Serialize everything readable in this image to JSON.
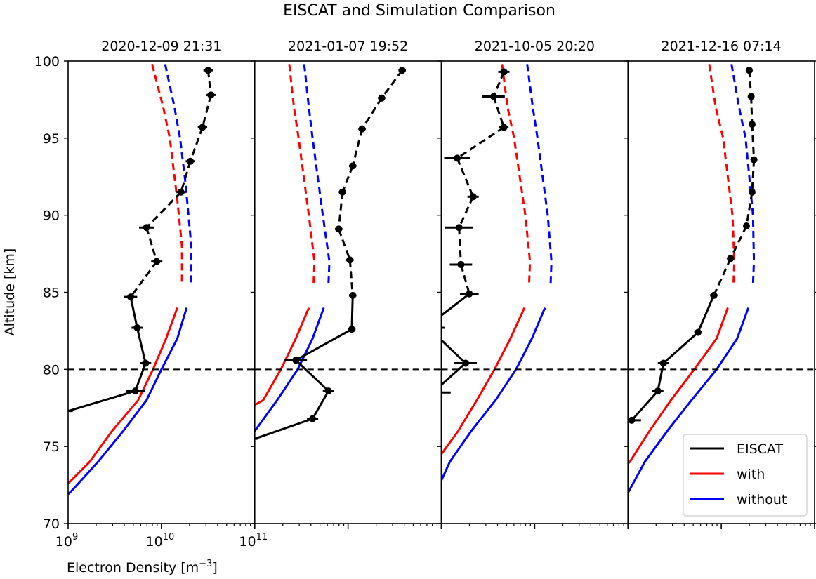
{
  "chart_data": {
    "type": "line",
    "title": "EISCAT and Simulation Comparison",
    "xlabel": "Electron Density [m⁻³]",
    "ylabel": "Altitude [km]",
    "xscale": "log",
    "xlim_log10": [
      9,
      11
    ],
    "ylim": [
      70,
      100
    ],
    "yticks": [
      70,
      75,
      80,
      85,
      90,
      95,
      100
    ],
    "xtick_labels": [
      {
        "exp": "9"
      },
      {
        "exp": "10"
      },
      {
        "exp": "11"
      }
    ],
    "reference_line": {
      "altitude": 80,
      "style": "dashed",
      "color": "#000000"
    },
    "dashed_above_km": 85,
    "legend": {
      "placement": "lower-right",
      "entries": [
        {
          "label": "EISCAT",
          "color": "#000000"
        },
        {
          "label": "with",
          "color": "#ff0000"
        },
        {
          "label": "without",
          "color": "#0000ff"
        }
      ]
    },
    "panels": [
      {
        "title": "2020-12-09 21:31",
        "eiscat": [
          [
            10.5,
            99.4
          ],
          [
            10.53,
            97.8
          ],
          [
            10.44,
            95.7
          ],
          [
            10.31,
            93.5
          ],
          [
            10.21,
            91.5
          ],
          [
            9.84,
            89.2
          ],
          [
            9.95,
            87.0
          ],
          [
            9.67,
            84.7
          ],
          [
            9.74,
            82.7
          ],
          [
            9.83,
            80.4
          ],
          [
            9.72,
            78.6
          ],
          [
            9.0,
            77.3
          ]
        ],
        "eiscat_err": [
          0.05,
          0.05,
          0.05,
          0.05,
          0.05,
          0.08,
          0.06,
          0.07,
          0.06,
          0.06,
          0.1,
          0.05
        ],
        "with": [
          [
            9.9,
            99.8
          ],
          [
            10.02,
            97
          ],
          [
            10.09,
            95
          ],
          [
            10.17,
            91
          ],
          [
            10.22,
            88
          ],
          [
            10.22,
            85.5
          ],
          [
            10.17,
            84
          ],
          [
            10.05,
            82
          ],
          [
            9.91,
            80
          ],
          [
            9.75,
            78
          ],
          [
            9.47,
            76
          ],
          [
            9.23,
            74
          ],
          [
            9.0,
            72.6
          ]
        ],
        "without": [
          [
            10.04,
            99.8
          ],
          [
            10.14,
            97
          ],
          [
            10.2,
            95
          ],
          [
            10.26,
            92
          ],
          [
            10.32,
            88
          ],
          [
            10.32,
            85.5
          ],
          [
            10.27,
            84
          ],
          [
            10.17,
            82
          ],
          [
            10.0,
            80
          ],
          [
            9.84,
            78
          ],
          [
            9.59,
            76
          ],
          [
            9.32,
            74
          ],
          [
            9.05,
            72.2
          ],
          [
            9.0,
            71.9
          ]
        ]
      },
      {
        "title": "2021-01-07 19:52",
        "eiscat": [
          [
            10.58,
            99.4
          ],
          [
            10.36,
            97.6
          ],
          [
            10.15,
            95.6
          ],
          [
            10.05,
            93.2
          ],
          [
            9.94,
            91.5
          ],
          [
            9.9,
            89.1
          ],
          [
            10.02,
            87.1
          ],
          [
            10.05,
            84.8
          ],
          [
            10.04,
            82.6
          ],
          [
            9.44,
            80.6
          ],
          [
            9.79,
            78.6
          ],
          [
            9.62,
            76.8
          ],
          [
            9.0,
            75.5
          ]
        ],
        "eiscat_err": [
          0.04,
          0.04,
          0.04,
          0.04,
          0.04,
          0.04,
          0.04,
          0.04,
          0.04,
          0.12,
          0.06,
          0.06,
          0.03
        ],
        "with": [
          [
            9.37,
            99.8
          ],
          [
            9.42,
            97
          ],
          [
            9.47,
            95
          ],
          [
            9.58,
            90
          ],
          [
            9.64,
            87
          ],
          [
            9.63,
            85.5
          ],
          [
            9.58,
            84
          ],
          [
            9.44,
            82
          ],
          [
            9.28,
            80
          ],
          [
            9.09,
            78
          ],
          [
            9.0,
            77.7
          ]
        ],
        "without": [
          [
            9.53,
            99.8
          ],
          [
            9.58,
            97
          ],
          [
            9.62,
            95
          ],
          [
            9.73,
            90
          ],
          [
            9.8,
            87
          ],
          [
            9.79,
            85.5
          ],
          [
            9.74,
            84
          ],
          [
            9.62,
            82
          ],
          [
            9.46,
            80
          ],
          [
            9.24,
            78
          ],
          [
            9.0,
            76
          ]
        ]
      },
      {
        "title": "2021-10-05 20:20",
        "eiscat": [
          [
            9.67,
            99.3
          ],
          [
            9.56,
            97.7
          ],
          [
            9.67,
            95.7
          ],
          [
            9.17,
            93.7
          ],
          [
            9.34,
            91.2
          ],
          [
            9.19,
            89.2
          ],
          [
            9.21,
            86.8
          ],
          [
            9.3,
            84.9
          ],
          [
            9.0,
            83.5
          ],
          [
            9.0,
            82.7
          ],
          [
            9.0,
            81.9
          ],
          [
            9.26,
            80.4
          ],
          [
            9.0,
            79.0
          ],
          [
            9.0,
            78.5
          ]
        ],
        "eiscat_err": [
          0.06,
          0.12,
          0.05,
          0.14,
          0.06,
          0.15,
          0.12,
          0.1,
          0,
          0.04,
          0,
          0.12,
          0,
          0.1
        ],
        "with": [
          [
            9.65,
            99.8
          ],
          [
            9.71,
            97
          ],
          [
            9.78,
            95
          ],
          [
            9.9,
            90
          ],
          [
            9.95,
            87
          ],
          [
            9.94,
            85.5
          ],
          [
            9.89,
            84
          ],
          [
            9.74,
            82
          ],
          [
            9.57,
            80
          ],
          [
            9.38,
            78
          ],
          [
            9.18,
            76
          ],
          [
            9.0,
            74.5
          ]
        ],
        "without": [
          [
            9.92,
            99.8
          ],
          [
            9.98,
            97
          ],
          [
            10.03,
            95
          ],
          [
            10.14,
            90
          ],
          [
            10.18,
            87
          ],
          [
            10.17,
            85.5
          ],
          [
            10.11,
            84
          ],
          [
            9.97,
            82
          ],
          [
            9.8,
            80
          ],
          [
            9.58,
            78
          ],
          [
            9.32,
            76
          ],
          [
            9.09,
            74
          ],
          [
            9.0,
            72.8
          ]
        ]
      },
      {
        "title": "2021-12-16 07:14",
        "eiscat": [
          [
            10.3,
            99.4
          ],
          [
            10.32,
            97.7
          ],
          [
            10.33,
            95.9
          ],
          [
            10.35,
            93.6
          ],
          [
            10.33,
            91.5
          ],
          [
            10.27,
            89.3
          ],
          [
            10.1,
            87.2
          ],
          [
            9.92,
            84.8
          ],
          [
            9.75,
            82.4
          ],
          [
            9.38,
            80.4
          ],
          [
            9.32,
            78.6
          ],
          [
            9.04,
            76.7
          ]
        ],
        "eiscat_err": [
          0.03,
          0.03,
          0.03,
          0.03,
          0.03,
          0.03,
          0.04,
          0.04,
          0.04,
          0.06,
          0.06,
          0.1
        ],
        "with": [
          [
            9.87,
            99.8
          ],
          [
            9.94,
            97
          ],
          [
            10.02,
            95
          ],
          [
            10.12,
            90
          ],
          [
            10.14,
            87
          ],
          [
            10.13,
            85.5
          ],
          [
            10.07,
            84
          ],
          [
            9.95,
            82
          ],
          [
            9.71,
            80
          ],
          [
            9.46,
            78
          ],
          [
            9.23,
            76
          ],
          [
            9.02,
            74
          ],
          [
            9.0,
            73.9
          ]
        ],
        "without": [
          [
            10.11,
            99.8
          ],
          [
            10.19,
            97
          ],
          [
            10.26,
            95
          ],
          [
            10.34,
            90
          ],
          [
            10.35,
            87
          ],
          [
            10.34,
            85.5
          ],
          [
            10.29,
            84
          ],
          [
            10.17,
            82
          ],
          [
            9.95,
            80
          ],
          [
            9.68,
            78
          ],
          [
            9.42,
            76
          ],
          [
            9.18,
            74
          ],
          [
            9.0,
            72
          ]
        ]
      }
    ]
  }
}
